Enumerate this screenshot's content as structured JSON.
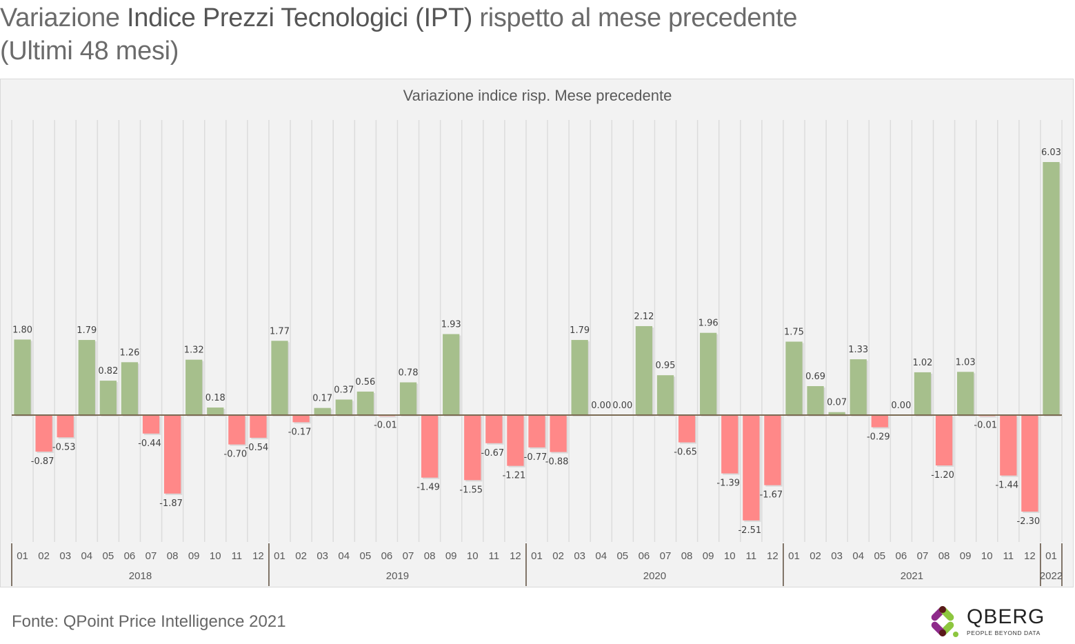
{
  "page": {
    "title_prefix": "Variazione ",
    "title_bold": "Indice Prezzi Tecnologici (IPT)",
    "title_suffix": " rispetto al mese precedente",
    "title_line2": "(Ultimi 48 mesi)",
    "source": "Fonte: QPoint Price Intelligence 2021",
    "logo_name": "QBERG",
    "logo_tagline": "PEOPLE BEYOND DATA"
  },
  "colors": {
    "positive": "#a6bf8c",
    "negative": "#ff8888",
    "axis": "#7a6a52",
    "gridline": "#dcdcdc",
    "label": "#404040",
    "logo_purple": "#8e2a8a",
    "logo_green": "#8dc63f",
    "logo_dark": "#5a1a1a"
  },
  "chart_data": {
    "type": "bar",
    "title": "Variazione indice risp. Mese precedente",
    "xlabel": "",
    "ylabel": "",
    "ylim": [
      -2.8,
      6.9
    ],
    "grid": "vertical",
    "legend": "none",
    "categories": [
      "01",
      "02",
      "03",
      "04",
      "05",
      "06",
      "07",
      "08",
      "09",
      "10",
      "11",
      "12",
      "01",
      "02",
      "03",
      "04",
      "05",
      "06",
      "07",
      "08",
      "09",
      "10",
      "11",
      "12",
      "01",
      "02",
      "03",
      "04",
      "05",
      "06",
      "07",
      "08",
      "09",
      "10",
      "11",
      "12",
      "01",
      "02",
      "03",
      "04",
      "05",
      "06",
      "07",
      "08",
      "09",
      "10",
      "11",
      "12",
      "01"
    ],
    "years": [
      {
        "label": "2018",
        "count": 12
      },
      {
        "label": "2019",
        "count": 12
      },
      {
        "label": "2020",
        "count": 12
      },
      {
        "label": "2021",
        "count": 12
      },
      {
        "label": "2022",
        "count": 1
      }
    ],
    "values": [
      1.8,
      -0.87,
      -0.53,
      1.79,
      0.82,
      1.26,
      -0.44,
      -1.87,
      1.32,
      0.18,
      -0.7,
      -0.54,
      1.77,
      -0.17,
      0.17,
      0.37,
      0.56,
      -0.01,
      0.78,
      -1.49,
      1.93,
      -1.55,
      -0.67,
      -1.21,
      -0.77,
      -0.88,
      1.79,
      0.0,
      0.0,
      2.12,
      0.95,
      -0.65,
      1.96,
      -1.39,
      -2.51,
      -1.67,
      1.75,
      0.69,
      0.07,
      1.33,
      -0.29,
      0.0,
      1.02,
      -1.2,
      1.03,
      -0.01,
      -1.44,
      -2.3,
      6.03
    ],
    "data_labels": [
      "1.80",
      "-0.87",
      "-0.53",
      "1.79",
      "0.82",
      "1.26",
      "-0.44",
      "-1.87",
      "1.32",
      "0.18",
      "-0.70",
      "-0.54",
      "1.77",
      "-0.17",
      "0.17",
      "0.37",
      "0.56",
      "-0.01",
      "0.78",
      "-1.49",
      "1.93",
      "-1.55",
      "-0.67",
      "-1.21",
      "-0.77",
      "-0.88",
      "1.79",
      "0.00",
      "0.00",
      "2.12",
      "0.95",
      "-0.65",
      "1.96",
      "-1.39",
      "-2.51",
      "-1.67",
      "1.75",
      "0.69",
      "0.07",
      "1.33",
      "-0.29",
      "0.00",
      "1.02",
      "-1.20",
      "1.03",
      "-0.01",
      "-1.44",
      "-2.30",
      "6.03"
    ]
  }
}
